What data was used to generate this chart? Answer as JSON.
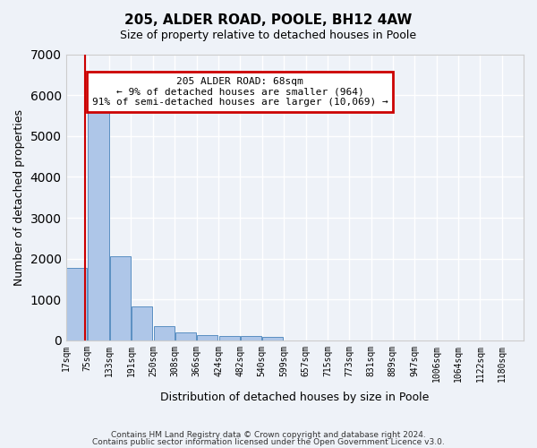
{
  "title_line1": "205, ALDER ROAD, POOLE, BH12 4AW",
  "title_line2": "Size of property relative to detached houses in Poole",
  "xlabel": "Distribution of detached houses by size in Poole",
  "ylabel": "Number of detached properties",
  "footer_line1": "Contains HM Land Registry data © Crown copyright and database right 2024.",
  "footer_line2": "Contains public sector information licensed under the Open Government Licence v3.0.",
  "annotation_line1": "205 ALDER ROAD: 68sqm",
  "annotation_line2": "← 9% of detached houses are smaller (964)",
  "annotation_line3": "91% of semi-detached houses are larger (10,069) →",
  "bar_color": "#aec6e8",
  "bar_edge_color": "#5a8fc2",
  "red_line_x": 68,
  "ylim": [
    0,
    7000
  ],
  "categories": [
    "17sqm",
    "75sqm",
    "133sqm",
    "191sqm",
    "250sqm",
    "308sqm",
    "366sqm",
    "424sqm",
    "482sqm",
    "540sqm",
    "599sqm",
    "657sqm",
    "715sqm",
    "773sqm",
    "831sqm",
    "889sqm",
    "947sqm",
    "1006sqm",
    "1064sqm",
    "1122sqm",
    "1180sqm"
  ],
  "bin_edges": [
    17,
    75,
    133,
    191,
    250,
    308,
    366,
    424,
    482,
    540,
    599,
    657,
    715,
    773,
    831,
    889,
    947,
    1006,
    1064,
    1122,
    1180
  ],
  "values": [
    1780,
    5780,
    2060,
    820,
    350,
    195,
    125,
    115,
    100,
    85,
    0,
    0,
    0,
    0,
    0,
    0,
    0,
    0,
    0,
    0
  ],
  "bg_color": "#eef2f8",
  "grid_color": "#ffffff",
  "annotation_box_color": "#ffffff",
  "annotation_box_edge": "#cc0000"
}
